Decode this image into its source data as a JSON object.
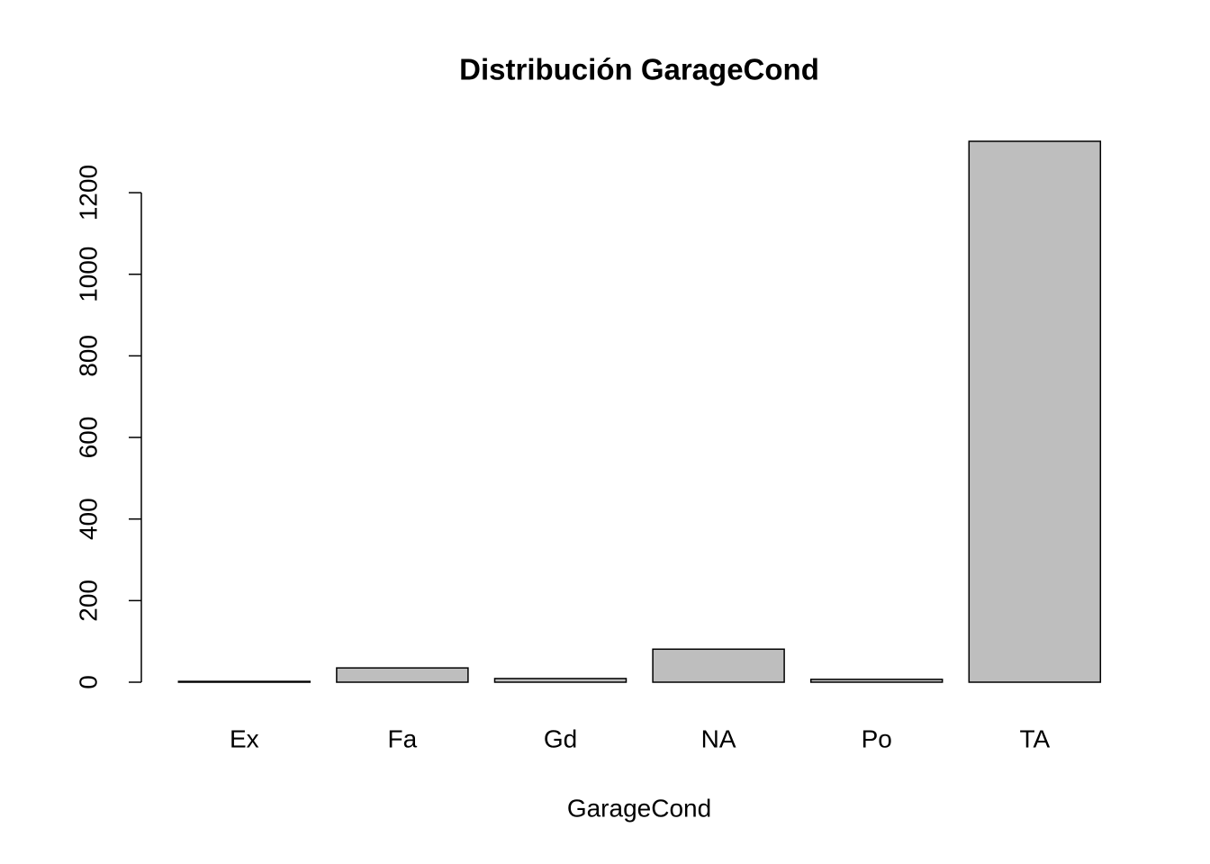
{
  "chart_data": {
    "type": "bar",
    "title": "Distribución GarageCond",
    "x_label": "GarageCond",
    "categories": [
      "Ex",
      "Fa",
      "Gd",
      "NA",
      "Po",
      "TA"
    ],
    "values": [
      2,
      35,
      9,
      81,
      7,
      1326
    ],
    "color": "#bebebe",
    "ylim": [
      0,
      1326
    ],
    "yticks": [
      0,
      200,
      400,
      600,
      800,
      1000,
      1200
    ]
  }
}
